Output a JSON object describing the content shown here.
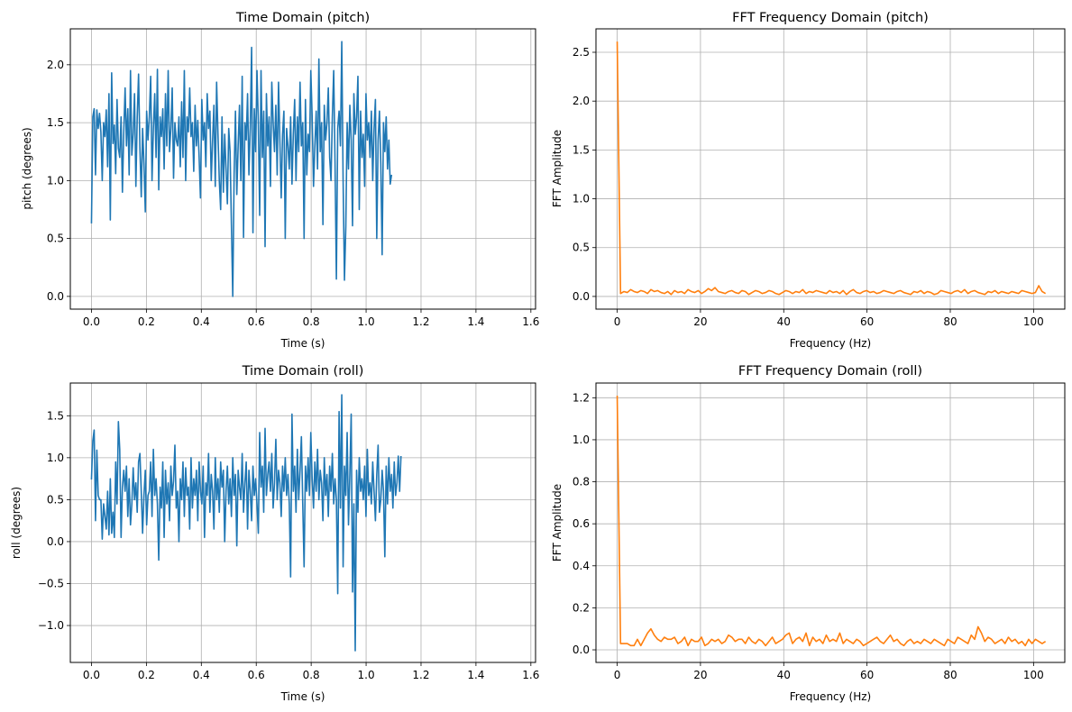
{
  "colors": {
    "time_series": "#1f77b4",
    "fft_series": "#ff7f0e",
    "grid": "#b0b0b0"
  },
  "chart_data": [
    {
      "id": "pitch-time",
      "type": "line",
      "title": "Time Domain (pitch)",
      "xlabel": "Time (s)",
      "ylabel": "pitch (degrees)",
      "xlim": [
        -0.077,
        1.617
      ],
      "ylim": [
        -0.11,
        2.31
      ],
      "xticks": [
        0.0,
        0.2,
        0.4,
        0.6,
        0.8,
        1.0,
        1.2,
        1.4,
        1.6
      ],
      "xtick_labels": [
        "0.0",
        "0.2",
        "0.4",
        "0.6",
        "0.8",
        "1.0",
        "1.2",
        "1.4",
        "1.6"
      ],
      "yticks": [
        0.0,
        0.5,
        1.0,
        1.5,
        2.0
      ],
      "ytick_labels": [
        "0.0",
        "0.5",
        "1.0",
        "1.5",
        "2.0"
      ],
      "grid": true,
      "color_key": "time_series",
      "x_start": 0.0,
      "x_step": 0.0049,
      "values": [
        0.63,
        1.55,
        1.62,
        1.05,
        1.61,
        1.45,
        1.58,
        1.42,
        1.0,
        1.5,
        1.38,
        1.61,
        1.12,
        1.75,
        0.66,
        1.93,
        1.32,
        1.48,
        1.06,
        1.7,
        1.28,
        1.2,
        1.55,
        0.9,
        1.42,
        1.8,
        1.3,
        1.62,
        1.05,
        1.95,
        1.22,
        1.4,
        1.75,
        0.95,
        1.55,
        1.92,
        1.28,
        0.86,
        1.45,
        1.15,
        0.73,
        1.6,
        1.35,
        1.55,
        1.9,
        1.0,
        1.45,
        1.75,
        1.2,
        1.96,
        0.92,
        1.55,
        1.38,
        1.62,
        1.1,
        1.75,
        1.3,
        1.95,
        1.25,
        1.45,
        1.8,
        1.02,
        1.5,
        1.35,
        1.3,
        1.55,
        1.12,
        1.68,
        1.2,
        1.95,
        1.0,
        1.55,
        1.42,
        1.8,
        1.38,
        1.5,
        1.08,
        1.65,
        1.3,
        1.52,
        1.2,
        0.85,
        1.7,
        1.35,
        1.5,
        1.12,
        1.75,
        1.45,
        1.6,
        1.0,
        1.35,
        1.65,
        0.95,
        1.85,
        1.4,
        1.0,
        0.75,
        1.55,
        0.9,
        1.4,
        1.1,
        0.8,
        1.45,
        1.25,
        0.62,
        0.0,
        1.05,
        1.6,
        0.88,
        1.3,
        1.65,
        1.0,
        1.9,
        0.51,
        1.5,
        1.35,
        1.75,
        1.05,
        1.45,
        2.15,
        0.55,
        1.62,
        1.25,
        1.95,
        1.5,
        0.7,
        1.95,
        1.2,
        1.6,
        0.43,
        1.75,
        1.3,
        1.55,
        0.95,
        1.85,
        1.5,
        1.25,
        1.65,
        1.05,
        1.85,
        1.35,
        0.85,
        1.4,
        1.6,
        0.5,
        1.45,
        1.3,
        1.1,
        1.55,
        0.97,
        1.4,
        1.7,
        1.0,
        1.55,
        1.25,
        1.85,
        1.3,
        1.5,
        0.5,
        1.7,
        1.05,
        1.4,
        1.25,
        1.95,
        1.55,
        0.95,
        1.3,
        1.6,
        1.1,
        2.05,
        1.25,
        1.5,
        0.62,
        1.65,
        1.35,
        1.5,
        1.8,
        1.2,
        1.0,
        1.55,
        1.95,
        1.15,
        0.15,
        1.45,
        1.6,
        1.3,
        2.2,
        1.0,
        0.14,
        0.6,
        1.5,
        1.1,
        1.65,
        1.35,
        0.61,
        1.75,
        1.4,
        1.55,
        1.9,
        0.75,
        1.6,
        1.2,
        1.4,
        0.95,
        1.75,
        1.35,
        1.5,
        1.2,
        1.6,
        1.0,
        1.45,
        1.7,
        0.5,
        1.35,
        1.6,
        1.15,
        0.36,
        1.5,
        1.25,
        1.55,
        1.1,
        1.35,
        0.97,
        1.05
      ]
    },
    {
      "id": "pitch-fft",
      "type": "line",
      "title": "FFT Frequency Domain (pitch)",
      "xlabel": "Frequency (Hz)",
      "ylabel": "FFT Amplitude",
      "xlim": [
        -5.1,
        107.5
      ],
      "ylim": [
        -0.13,
        2.74
      ],
      "xticks": [
        0,
        20,
        40,
        60,
        80,
        100
      ],
      "xtick_labels": [
        "0",
        "20",
        "40",
        "60",
        "80",
        "100"
      ],
      "yticks": [
        0.0,
        0.5,
        1.0,
        1.5,
        2.0,
        2.5
      ],
      "ytick_labels": [
        "0.0",
        "0.5",
        "1.0",
        "1.5",
        "2.0",
        "2.5"
      ],
      "grid": true,
      "color_key": "fft_series",
      "x_start": 0.0,
      "x_step": 0.81,
      "values": [
        2.61,
        0.03,
        0.05,
        0.04,
        0.07,
        0.05,
        0.04,
        0.06,
        0.05,
        0.03,
        0.07,
        0.05,
        0.06,
        0.04,
        0.03,
        0.05,
        0.02,
        0.06,
        0.04,
        0.05,
        0.03,
        0.07,
        0.05,
        0.04,
        0.06,
        0.03,
        0.05,
        0.08,
        0.06,
        0.09,
        0.05,
        0.04,
        0.03,
        0.05,
        0.06,
        0.04,
        0.03,
        0.06,
        0.05,
        0.02,
        0.04,
        0.06,
        0.05,
        0.03,
        0.04,
        0.06,
        0.05,
        0.03,
        0.02,
        0.04,
        0.06,
        0.05,
        0.03,
        0.05,
        0.04,
        0.07,
        0.03,
        0.05,
        0.04,
        0.06,
        0.05,
        0.04,
        0.03,
        0.06,
        0.04,
        0.05,
        0.03,
        0.06,
        0.02,
        0.05,
        0.07,
        0.04,
        0.03,
        0.05,
        0.06,
        0.04,
        0.05,
        0.03,
        0.04,
        0.06,
        0.05,
        0.04,
        0.03,
        0.05,
        0.06,
        0.04,
        0.03,
        0.02,
        0.05,
        0.04,
        0.06,
        0.03,
        0.05,
        0.04,
        0.02,
        0.03,
        0.06,
        0.05,
        0.04,
        0.03,
        0.05,
        0.06,
        0.04,
        0.07,
        0.03,
        0.05,
        0.06,
        0.04,
        0.03,
        0.02,
        0.05,
        0.04,
        0.06,
        0.03,
        0.05,
        0.04,
        0.03,
        0.05,
        0.04,
        0.03,
        0.06,
        0.05,
        0.04,
        0.03,
        0.04,
        0.11,
        0.05,
        0.03
      ]
    },
    {
      "id": "roll-time",
      "type": "line",
      "title": "Time Domain (roll)",
      "xlabel": "Time (s)",
      "ylabel": "roll (degrees)",
      "xlim": [
        -0.077,
        1.617
      ],
      "ylim": [
        -1.44,
        1.89
      ],
      "xticks": [
        0.0,
        0.2,
        0.4,
        0.6,
        0.8,
        1.0,
        1.2,
        1.4,
        1.6
      ],
      "xtick_labels": [
        "0.0",
        "0.2",
        "0.4",
        "0.6",
        "0.8",
        "1.0",
        "1.2",
        "1.4",
        "1.6"
      ],
      "yticks": [
        -1.0,
        -0.5,
        0.0,
        0.5,
        1.0,
        1.5
      ],
      "ytick_labels": [
        "−1.0",
        "−0.5",
        "0.0",
        "0.5",
        "1.0",
        "1.5"
      ],
      "grid": true,
      "color_key": "time_series",
      "x_start": 0.0,
      "x_step": 0.0049,
      "values": [
        0.74,
        1.2,
        1.33,
        0.25,
        1.09,
        0.55,
        0.5,
        0.5,
        0.03,
        0.45,
        0.3,
        0.15,
        0.6,
        0.08,
        0.75,
        0.1,
        0.35,
        0.05,
        0.95,
        0.45,
        1.43,
        1.1,
        0.05,
        0.65,
        0.85,
        0.6,
        0.9,
        0.3,
        0.75,
        0.2,
        0.45,
        0.88,
        0.5,
        0.7,
        0.35,
        0.95,
        1.05,
        0.6,
        0.1,
        0.55,
        0.85,
        0.2,
        0.55,
        0.6,
        0.95,
        0.3,
        1.1,
        0.55,
        0.75,
        0.45,
        -0.22,
        0.65,
        0.4,
        0.95,
        0.05,
        0.85,
        0.45,
        0.7,
        0.25,
        0.9,
        0.55,
        0.72,
        1.15,
        0.4,
        0.6,
        0.0,
        0.75,
        0.5,
        0.95,
        0.3,
        0.88,
        0.55,
        0.65,
        0.15,
        1.0,
        0.4,
        0.75,
        0.55,
        0.85,
        0.25,
        0.95,
        0.6,
        0.45,
        0.9,
        0.05,
        0.7,
        0.55,
        1.05,
        0.35,
        0.8,
        0.6,
        0.15,
        1.0,
        0.5,
        0.75,
        0.35,
        0.95,
        0.65,
        0.85,
        0.0,
        0.6,
        0.9,
        0.45,
        0.75,
        0.3,
        1.0,
        0.55,
        0.8,
        -0.05,
        0.85,
        0.65,
        0.5,
        1.05,
        0.35,
        0.7,
        0.95,
        0.15,
        0.85,
        0.6,
        0.25,
        0.9,
        0.55,
        0.75,
        0.45,
        0.1,
        1.3,
        0.65,
        0.9,
        0.35,
        1.35,
        0.55,
        0.8,
        0.95,
        0.6,
        1.05,
        0.4,
        0.7,
        1.22,
        0.5,
        0.85,
        0.7,
        0.3,
        0.9,
        0.6,
        1.0,
        0.55,
        0.8,
        0.45,
        -0.42,
        1.52,
        0.6,
        0.9,
        0.35,
        1.1,
        0.5,
        0.85,
        1.25,
        0.45,
        -0.3,
        0.9,
        0.6,
        1.0,
        0.55,
        1.3,
        0.75,
        0.4,
        0.95,
        0.6,
        1.1,
        0.5,
        0.85,
        0.7,
        0.25,
        1.0,
        0.55,
        0.8,
        0.3,
        0.9,
        0.6,
        1.05,
        0.45,
        0.75,
        0.5,
        -0.62,
        1.55,
        0.4,
        1.75,
        -0.3,
        0.9,
        0.55,
        1.3,
        0.2,
        0.8,
        1.52,
        -0.6,
        0.45,
        -1.3,
        0.85,
        0.35,
        1.0,
        0.6,
        0.75,
        0.5,
        0.9,
        0.3,
        1.1,
        0.55,
        0.7,
        0.45,
        0.95,
        0.6,
        0.25,
        0.8,
        1.15,
        0.35,
        0.5,
        0.85,
        0.6,
        -0.18,
        0.9,
        0.45,
        1.0,
        0.6,
        0.8,
        0.4,
        0.95,
        0.55,
        0.7,
        1.02,
        0.6,
        1.02
      ]
    },
    {
      "id": "roll-fft",
      "type": "line",
      "title": "FFT Frequency Domain (roll)",
      "xlabel": "Frequency (Hz)",
      "ylabel": "FFT Amplitude",
      "xlim": [
        -5.1,
        107.5
      ],
      "ylim": [
        -0.06,
        1.27
      ],
      "xticks": [
        0,
        20,
        40,
        60,
        80,
        100
      ],
      "xtick_labels": [
        "0",
        "20",
        "40",
        "60",
        "80",
        "100"
      ],
      "yticks": [
        0.0,
        0.2,
        0.4,
        0.6,
        0.8,
        1.0,
        1.2
      ],
      "ytick_labels": [
        "0.0",
        "0.2",
        "0.4",
        "0.6",
        "0.8",
        "1.0",
        "1.2"
      ],
      "grid": true,
      "color_key": "fft_series",
      "x_start": 0.0,
      "x_step": 0.81,
      "values": [
        1.21,
        0.03,
        0.03,
        0.03,
        0.02,
        0.02,
        0.05,
        0.02,
        0.05,
        0.08,
        0.1,
        0.07,
        0.05,
        0.04,
        0.06,
        0.05,
        0.05,
        0.06,
        0.03,
        0.04,
        0.06,
        0.02,
        0.05,
        0.04,
        0.04,
        0.06,
        0.02,
        0.03,
        0.05,
        0.04,
        0.05,
        0.03,
        0.04,
        0.07,
        0.06,
        0.04,
        0.05,
        0.05,
        0.03,
        0.06,
        0.04,
        0.03,
        0.05,
        0.04,
        0.02,
        0.04,
        0.06,
        0.03,
        0.04,
        0.05,
        0.07,
        0.08,
        0.03,
        0.05,
        0.06,
        0.04,
        0.08,
        0.02,
        0.06,
        0.04,
        0.05,
        0.03,
        0.07,
        0.04,
        0.05,
        0.04,
        0.08,
        0.03,
        0.05,
        0.04,
        0.03,
        0.05,
        0.04,
        0.02,
        0.03,
        0.04,
        0.05,
        0.06,
        0.04,
        0.03,
        0.05,
        0.07,
        0.04,
        0.05,
        0.03,
        0.02,
        0.04,
        0.05,
        0.03,
        0.04,
        0.03,
        0.05,
        0.04,
        0.03,
        0.05,
        0.04,
        0.03,
        0.02,
        0.05,
        0.04,
        0.03,
        0.06,
        0.05,
        0.04,
        0.03,
        0.07,
        0.05,
        0.11,
        0.08,
        0.04,
        0.06,
        0.05,
        0.03,
        0.04,
        0.05,
        0.03,
        0.06,
        0.04,
        0.05,
        0.03,
        0.04,
        0.02,
        0.05,
        0.03,
        0.05,
        0.04,
        0.03,
        0.04
      ]
    }
  ]
}
